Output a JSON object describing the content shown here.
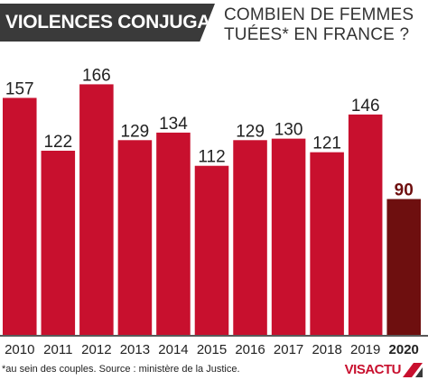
{
  "header": {
    "badge": "VIOLENCES CONJUGALES",
    "subtitle_line1": "COMBIEN DE FEMMES",
    "subtitle_line2": "TUÉES* EN FRANCE ?"
  },
  "footer": {
    "note": "*au sein des couples. Source : ministère de la Justice.",
    "logo": "VISACTU"
  },
  "colors": {
    "bar": "#c8102e",
    "bar_highlight": "#6e0f0f",
    "axis": "#222222",
    "text": "#222222"
  },
  "chart_data": {
    "type": "bar",
    "title": "COMBIEN DE FEMMES TUÉES* EN FRANCE ?",
    "categories": [
      "2010",
      "2011",
      "2012",
      "2013",
      "2014",
      "2015",
      "2016",
      "2017",
      "2018",
      "2019",
      "2020"
    ],
    "values": [
      157,
      122,
      166,
      129,
      134,
      112,
      129,
      130,
      121,
      146,
      90
    ],
    "highlight": "2020",
    "xlabel": "",
    "ylabel": "",
    "ylim": [
      0,
      180
    ],
    "grid": false,
    "data_labels": true
  }
}
